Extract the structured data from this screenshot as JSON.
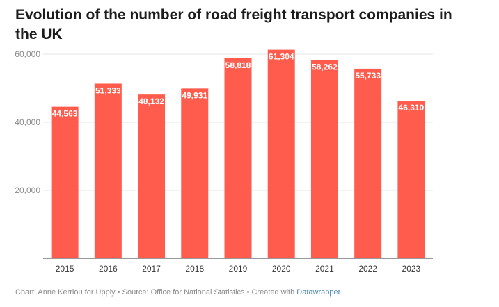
{
  "title": "Evolution of the number of road freight transport companies in the UK",
  "footer": {
    "text": "Chart: Anne Kerriou for Upply • Source: Office for National Statistics • Created with ",
    "link": "Datawrapper"
  },
  "colors": {
    "bar": "#ff5c4d",
    "grid": "#e6e6e6",
    "axis": "#333333",
    "link": "#4b86b4"
  },
  "chart_data": {
    "type": "bar",
    "categories": [
      "2015",
      "2016",
      "2017",
      "2018",
      "2019",
      "2020",
      "2021",
      "2022",
      "2023"
    ],
    "values": [
      44563,
      51333,
      48132,
      49931,
      58818,
      61304,
      58262,
      55733,
      46310
    ],
    "data_labels": [
      "44,563",
      "51,333",
      "48,132",
      "49,931",
      "58,818",
      "61,304",
      "58,262",
      "55,733",
      "46,310"
    ],
    "yticks": [
      20000,
      40000,
      60000
    ],
    "ytick_labels": [
      "20,000",
      "40,000",
      "60,000"
    ],
    "ylim": [
      0,
      61304
    ],
    "grid": true
  }
}
